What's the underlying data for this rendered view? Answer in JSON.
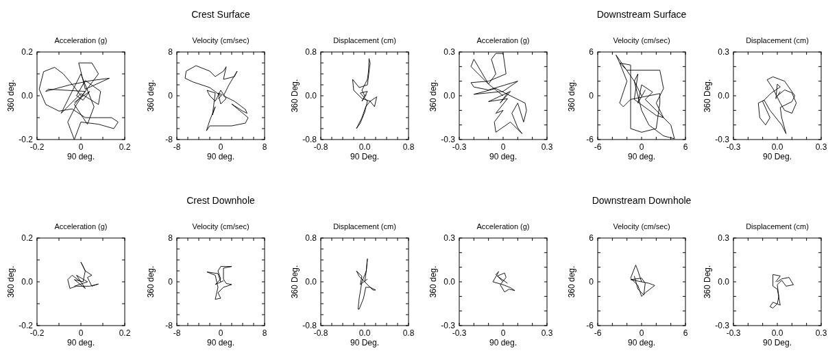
{
  "chart_data": [
    {
      "type": "line",
      "subtitle": "Acceleration (g)",
      "xlabel": "90 deg.",
      "ylabel": "360 deg.",
      "xlim": [
        -0.2,
        0.2
      ],
      "ylim": [
        -0.2,
        0.2
      ],
      "xticks": [
        -0.2,
        {
          "value": -0.1,
          "label": null
        },
        0,
        {
          "value": 0.1,
          "label": null
        },
        0.2
      ],
      "yticks": [
        -0.2,
        {
          "value": -0.1,
          "label": null
        },
        {
          "value": 0,
          "label": "0.0"
        },
        {
          "value": 0.1,
          "label": null
        },
        0.2
      ],
      "series": [
        {
          "color": "#000000",
          "x": [
            0,
            -0.03,
            -0.08,
            -0.12,
            -0.17,
            -0.19,
            -0.16,
            -0.1,
            -0.04,
            0.02,
            0.08,
            0.14,
            0.17,
            0.15,
            0.08,
            0,
            -0.03,
            -0.06,
            -0.02,
            0.02,
            -0.15,
            -0.16,
            -0.05,
            0.05,
            0.13,
            0.02,
            -0.01,
            0.05,
            0.08,
            0.02,
            -0.03,
            0.03,
            0.06,
            0,
            -0.09,
            0,
            0.08,
            0.09,
            0.02,
            -0.02,
            0.01,
            0.04,
            -0.03
          ],
          "values": [
            0,
            0.04,
            0.1,
            0.13,
            0.11,
            0.03,
            -0.04,
            -0.07,
            -0.06,
            -0.1,
            -0.1,
            -0.1,
            -0.12,
            -0.15,
            -0.13,
            -0.12,
            -0.2,
            -0.12,
            -0.04,
            0.02,
            0.03,
            0.02,
            0.05,
            0.07,
            0.08,
            0.03,
            0.15,
            0.15,
            0.1,
            0.02,
            -0.04,
            -0.13,
            -0.05,
            0.1,
            -0.08,
            0.01,
            -0.04,
            0.02,
            0.07,
            0,
            -0.02,
            0.02,
            -0.03
          ]
        }
      ]
    },
    {
      "type": "line",
      "title": "Crest Surface",
      "subtitle": "Velocity (cm/sec)",
      "xlabel": "90 deg.",
      "ylabel": "360 deg.",
      "xlim": [
        -8,
        8
      ],
      "ylim": [
        -8,
        8
      ],
      "xticks": [
        -8,
        {
          "value": -6,
          "label": null
        },
        {
          "value": -4,
          "label": null
        },
        {
          "value": -2,
          "label": null
        },
        0,
        {
          "value": 2,
          "label": null
        },
        {
          "value": 4,
          "label": null
        },
        {
          "value": 6,
          "label": null
        },
        8
      ],
      "yticks": [
        -8,
        {
          "value": -6,
          "label": null
        },
        {
          "value": -4,
          "label": null
        },
        {
          "value": -2,
          "label": null
        },
        0,
        {
          "value": 2,
          "label": null
        },
        {
          "value": 4,
          "label": null
        },
        {
          "value": 6,
          "label": null
        },
        8
      ],
      "series": [
        {
          "color": "#000000",
          "x": [
            0,
            -2,
            -5,
            -6.5,
            -6.3,
            -4.5,
            -2,
            -1,
            0.5,
            1,
            0.5,
            2.5,
            3,
            1.5,
            0.5,
            2.5,
            4.5,
            4.8,
            4,
            2,
            5,
            4.5,
            2,
            -2,
            -2.6,
            -2,
            -1,
            -1.5,
            -1,
            -2.5,
            -2,
            -1,
            0,
            1,
            0,
            -0.5,
            0.3,
            -0.5
          ],
          "values": [
            0,
            1.5,
            2.5,
            3.2,
            4.5,
            5.5,
            4.5,
            3.5,
            4.5,
            5.3,
            3,
            3.5,
            4.5,
            2,
            0,
            -1,
            -2.5,
            -3.2,
            -2.8,
            -1.5,
            -4,
            -5,
            -5.5,
            -5.5,
            -6.4,
            -4.5,
            -2,
            -3.5,
            0.5,
            1,
            0,
            -1,
            1,
            -0.5,
            -1.5,
            0.5,
            0.2,
            -0.6
          ]
        }
      ]
    },
    {
      "type": "line",
      "subtitle": "Displacement (cm)",
      "xlabel": "90 Deg.",
      "ylabel": "360 Deg.",
      "xlim": [
        -0.8,
        0.8
      ],
      "ylim": [
        -0.8,
        0.8
      ],
      "xticks": [
        -0.8,
        {
          "value": -0.6,
          "label": null
        },
        {
          "value": -0.4,
          "label": null
        },
        {
          "value": -0.2,
          "label": null
        },
        {
          "value": 0,
          "label": "0.0"
        },
        {
          "value": 0.2,
          "label": null
        },
        {
          "value": 0.4,
          "label": null
        },
        {
          "value": 0.6,
          "label": null
        },
        0.8
      ],
      "yticks": [
        -0.8,
        {
          "value": -0.6,
          "label": null
        },
        {
          "value": -0.4,
          "label": null
        },
        {
          "value": -0.2,
          "label": null
        },
        {
          "value": 0,
          "label": "0.0"
        },
        {
          "value": 0.2,
          "label": null
        },
        {
          "value": 0.4,
          "label": null
        },
        {
          "value": 0.6,
          "label": null
        },
        0.8
      ],
      "series": [
        {
          "color": "#000000",
          "x": [
            0,
            -0.05,
            0.05,
            0.07,
            0.08,
            0.1,
            0.05,
            -0.1,
            -0.22,
            -0.2,
            -0.05,
            0.1,
            0.22,
            0.18,
            0.1,
            0.02,
            -0.05,
            -0.15,
            -0.08,
            0,
            0.05,
            -0.08,
            0.05,
            -0.05,
            0.03
          ],
          "values": [
            0,
            0.1,
            0.3,
            0.45,
            0.68,
            0.6,
            0.2,
            0.15,
            0.3,
            0.1,
            -0.05,
            -0.1,
            -0.02,
            -0.2,
            -0.1,
            -0.2,
            -0.4,
            -0.6,
            -0.5,
            -0.3,
            -0.1,
            0.05,
            0.08,
            -0.1,
            0.02
          ]
        }
      ]
    },
    {
      "type": "line",
      "subtitle": "Acceleration (g)",
      "xlabel": "90 deg.",
      "ylabel": "360 deg.",
      "xlim": [
        -0.3,
        0.3
      ],
      "ylim": [
        -0.3,
        0.3
      ],
      "xticks": [
        -0.3,
        {
          "value": -0.2,
          "label": null
        },
        {
          "value": -0.1,
          "label": null
        },
        0,
        {
          "value": 0.1,
          "label": null
        },
        {
          "value": 0.2,
          "label": null
        },
        0.3
      ],
      "yticks": [
        -0.3,
        {
          "value": -0.2,
          "label": null
        },
        {
          "value": -0.1,
          "label": null
        },
        {
          "value": 0,
          "label": "0.0"
        },
        {
          "value": 0.1,
          "label": null
        },
        {
          "value": 0.2,
          "label": null
        },
        0.3
      ],
      "series": [
        {
          "color": "#000000",
          "x": [
            0,
            -0.1,
            -0.2,
            -0.22,
            -0.1,
            -0.05,
            -0.08,
            -0.05,
            0,
            0.02,
            -0.1,
            -0.22,
            -0.2,
            -0.1,
            0.1,
            0,
            -0.2,
            -0.05,
            0.09,
            0.15,
            0.16,
            0.14,
            0.1,
            0.06,
            0.1,
            0.13,
            0.05,
            -0.05,
            -0.06,
            0,
            -0.05,
            0.03,
            -0.1,
            0.05,
            -0.02,
            0.03
          ],
          "values": [
            0,
            0.08,
            0.25,
            0.2,
            0.08,
            0.15,
            0.25,
            0.29,
            0.29,
            0.15,
            0.1,
            0.09,
            0.06,
            0.04,
            0.1,
            0.03,
            0.01,
            0.05,
            -0.02,
            -0.05,
            -0.1,
            -0.18,
            -0.05,
            -0.12,
            -0.22,
            -0.26,
            -0.18,
            -0.25,
            -0.18,
            -0.1,
            -0.12,
            -0.02,
            -0.04,
            0.03,
            -0.05,
            0.02
          ]
        }
      ]
    },
    {
      "type": "line",
      "title": "Downstream Surface",
      "subtitle": "Velocity (cm/sec)",
      "xlabel": "90 deg.",
      "ylabel": "360 deg.",
      "xlim": [
        -6,
        6
      ],
      "ylim": [
        -6,
        6
      ],
      "xticks": [
        -6,
        {
          "value": -4,
          "label": null
        },
        {
          "value": -2,
          "label": null
        },
        0,
        {
          "value": 2,
          "label": null
        },
        {
          "value": 4,
          "label": null
        },
        6
      ],
      "yticks": [
        -6,
        {
          "value": -4,
          "label": null
        },
        {
          "value": -2,
          "label": null
        },
        0,
        {
          "value": 2,
          "label": null
        },
        {
          "value": 4,
          "label": null
        },
        6
      ],
      "series": [
        {
          "color": "#000000",
          "x": [
            0,
            -1,
            -3.5,
            -3,
            -2,
            -3,
            -2.5,
            -1.5,
            2.5,
            2.5,
            2,
            0,
            -1.5,
            -1.5,
            -3,
            -2,
            2.5,
            3,
            2,
            3,
            2,
            -1,
            -0.5,
            -1,
            0,
            1,
            3,
            4.5,
            4,
            2,
            0.5,
            1.5,
            0,
            -0.5,
            0.5
          ],
          "values": [
            0,
            2,
            5.6,
            4.5,
            2,
            -1,
            -1.5,
            -0.5,
            0.3,
            -1,
            -4.5,
            -5,
            -4.5,
            4.2,
            4.5,
            3.5,
            3.5,
            1,
            -1,
            -3,
            -2.7,
            -0.5,
            3,
            2,
            -2,
            -4,
            -5.5,
            -5.9,
            -4,
            -2,
            -0.5,
            0.5,
            1.5,
            -1,
            0.8
          ]
        }
      ]
    },
    {
      "type": "line",
      "subtitle": "Displacement (cm)",
      "xlabel": "90 Deg.",
      "ylabel": "360 Deg.",
      "xlim": [
        -0.3,
        0.3
      ],
      "ylim": [
        -0.3,
        0.3
      ],
      "xticks": [
        -0.3,
        {
          "value": -0.2,
          "label": null
        },
        {
          "value": -0.1,
          "label": null
        },
        {
          "value": 0,
          "label": "0.0"
        },
        {
          "value": 0.1,
          "label": null
        },
        {
          "value": 0.2,
          "label": null
        },
        0.3
      ],
      "yticks": [
        -0.3,
        {
          "value": -0.2,
          "label": null
        },
        {
          "value": -0.1,
          "label": null
        },
        {
          "value": 0,
          "label": "0.0"
        },
        {
          "value": 0.1,
          "label": null
        },
        {
          "value": 0.2,
          "label": null
        },
        0.3
      ],
      "series": [
        {
          "color": "#000000",
          "x": [
            0,
            0.05,
            0.1,
            0.13,
            0.1,
            0.05,
            0.02,
            -0.03,
            -0.07,
            -0.03,
            0.05,
            0.12,
            0.1,
            0.02,
            0.03,
            0.06,
            0.03,
            -0.05,
            -0.09,
            -0.13,
            -0.12,
            -0.08,
            -0.05,
            -0.1,
            -0.04,
            0.02,
            0,
            -0.01,
            0.02
          ],
          "values": [
            0,
            0.04,
            0.02,
            -0.05,
            -0.12,
            -0.1,
            -0.05,
            0.05,
            0.11,
            0.13,
            0.1,
            0,
            -0.04,
            -0.08,
            -0.15,
            -0.26,
            -0.2,
            -0.1,
            -0.03,
            -0.05,
            -0.15,
            -0.2,
            -0.15,
            -0.04,
            0.02,
            0.06,
            0.08,
            -0.02,
            0.03
          ]
        }
      ]
    },
    {
      "type": "line",
      "subtitle": "Acceleration (g)",
      "xlabel": "90 deg.",
      "ylabel": "360 deg.",
      "xlim": [
        -0.2,
        0.2
      ],
      "ylim": [
        -0.2,
        0.2
      ],
      "xticks": [
        -0.2,
        {
          "value": -0.1,
          "label": null
        },
        0,
        {
          "value": 0.1,
          "label": null
        },
        0.2
      ],
      "yticks": [
        -0.2,
        {
          "value": -0.1,
          "label": null
        },
        {
          "value": 0,
          "label": "0.0"
        },
        {
          "value": 0.1,
          "label": null
        },
        0.2
      ],
      "series": [
        {
          "color": "#000000",
          "x": [
            0,
            -0.04,
            -0.06,
            -0.05,
            -0.02,
            0.04,
            0.08,
            0.05,
            0.03,
            0.05,
            0.02,
            0,
            0.02,
            0.01,
            -0.03,
            0.02,
            -0.02,
            0.03,
            -0.03
          ],
          "values": [
            0,
            0.03,
            0.01,
            -0.03,
            -0.02,
            -0.02,
            -0.01,
            -0.02,
            0.02,
            0.03,
            0.05,
            0.09,
            0.05,
            0,
            0.01,
            -0.03,
            0.03,
            0,
            -0.02
          ]
        }
      ]
    },
    {
      "type": "line",
      "title": "Crest Downhole",
      "subtitle": "Velocity (cm/sec)",
      "xlabel": "90 deg.",
      "ylabel": "360 deg.",
      "xlim": [
        -8,
        8
      ],
      "ylim": [
        -8,
        8
      ],
      "xticks": [
        -8,
        {
          "value": -6,
          "label": null
        },
        {
          "value": -4,
          "label": null
        },
        {
          "value": -2,
          "label": null
        },
        0,
        {
          "value": 2,
          "label": null
        },
        {
          "value": 4,
          "label": null
        },
        {
          "value": 6,
          "label": null
        },
        8
      ],
      "yticks": [
        -8,
        {
          "value": -6,
          "label": null
        },
        {
          "value": -4,
          "label": null
        },
        {
          "value": -2,
          "label": null
        },
        0,
        {
          "value": 2,
          "label": null
        },
        {
          "value": 4,
          "label": null
        },
        {
          "value": 6,
          "label": null
        },
        8
      ],
      "series": [
        {
          "color": "#000000",
          "x": [
            0,
            -0.5,
            -2.5,
            -1,
            -0.5,
            -1,
            0,
            -0.5,
            0.5,
            2,
            1,
            0.5,
            0.5,
            2,
            0,
            -0.5,
            0,
            -1,
            0.5
          ],
          "values": [
            0,
            1.5,
            1.8,
            1.2,
            -1,
            -3.2,
            -3,
            -2,
            -1,
            -0.5,
            -0.3,
            0.5,
            2.5,
            2.8,
            2.8,
            2,
            0.5,
            -0.5,
            0.2
          ]
        }
      ]
    },
    {
      "type": "line",
      "subtitle": "Displacement (cm)",
      "xlabel": "90 Deg.",
      "ylabel": "360 Deg.",
      "xlim": [
        -0.8,
        0.8
      ],
      "ylim": [
        -0.8,
        0.8
      ],
      "xticks": [
        -0.8,
        {
          "value": -0.6,
          "label": null
        },
        {
          "value": -0.4,
          "label": null
        },
        {
          "value": -0.2,
          "label": null
        },
        {
          "value": 0,
          "label": "0.0"
        },
        {
          "value": 0.2,
          "label": null
        },
        {
          "value": 0.4,
          "label": null
        },
        {
          "value": 0.6,
          "label": null
        },
        0.8
      ],
      "yticks": [
        -0.8,
        {
          "value": -0.6,
          "label": null
        },
        {
          "value": -0.4,
          "label": null
        },
        {
          "value": -0.2,
          "label": null
        },
        {
          "value": 0,
          "label": "0.0"
        },
        {
          "value": 0.2,
          "label": null
        },
        {
          "value": 0.4,
          "label": null
        },
        {
          "value": 0.6,
          "label": null
        },
        0.8
      ],
      "series": [
        {
          "color": "#000000",
          "x": [
            0,
            0.03,
            0.05,
            0.03,
            -0.05,
            -0.1,
            -0.12,
            -0.1,
            -0.02,
            0.02,
            0.1,
            0.2,
            0.15,
            0.05,
            -0.1,
            -0.15,
            -0.05,
            -0.08,
            0.05
          ],
          "values": [
            0,
            0.2,
            0.42,
            0.2,
            0,
            -0.3,
            -0.5,
            -0.5,
            -0.3,
            -0.1,
            -0.1,
            -0.15,
            -0.15,
            -0.05,
            0.1,
            0.2,
            0.1,
            -0.05,
            0.05
          ]
        }
      ]
    },
    {
      "type": "line",
      "subtitle": "Acceleration (g)",
      "xlabel": "90 deg.",
      "ylabel": "360 deg.",
      "xlim": [
        -0.3,
        0.3
      ],
      "ylim": [
        -0.3,
        0.3
      ],
      "xticks": [
        -0.3,
        {
          "value": -0.2,
          "label": null
        },
        {
          "value": -0.1,
          "label": null
        },
        0,
        {
          "value": 0.1,
          "label": null
        },
        {
          "value": 0.2,
          "label": null
        },
        0.3
      ],
      "yticks": [
        -0.3,
        {
          "value": -0.2,
          "label": null
        },
        {
          "value": -0.1,
          "label": null
        },
        {
          "value": 0,
          "label": "0.0"
        },
        {
          "value": 0.1,
          "label": null
        },
        {
          "value": 0.2,
          "label": null
        },
        0.3
      ],
      "series": [
        {
          "color": "#000000",
          "x": [
            0,
            -0.05,
            -0.03,
            -0.07,
            0,
            0.05,
            0.08,
            0.04,
            0.01,
            -0.02,
            0.02,
            0.01,
            -0.04,
            0.03
          ],
          "values": [
            0,
            0.05,
            0.07,
            0,
            -0.02,
            -0.04,
            -0.06,
            -0.05,
            -0.07,
            -0.02,
            0.03,
            0.06,
            0.04,
            -0.01
          ]
        }
      ]
    },
    {
      "type": "line",
      "title": "Downstream Downhole",
      "subtitle": "Velocity (cm/sec)",
      "xlabel": "90 deg.",
      "ylabel": "360 deg.",
      "xlim": [
        -6,
        6
      ],
      "ylim": [
        -6,
        6
      ],
      "xticks": [
        -6,
        {
          "value": -4,
          "label": null
        },
        {
          "value": -2,
          "label": null
        },
        0,
        {
          "value": 2,
          "label": null
        },
        {
          "value": 4,
          "label": null
        },
        6
      ],
      "yticks": [
        -6,
        {
          "value": -4,
          "label": null
        },
        {
          "value": -2,
          "label": null
        },
        0,
        {
          "value": 2,
          "label": null
        },
        {
          "value": 4,
          "label": null
        },
        6
      ],
      "series": [
        {
          "color": "#000000",
          "x": [
            0,
            -0.5,
            -0.8,
            -1.5,
            -0.5,
            0,
            0.5,
            1.8,
            1,
            -1.5,
            0,
            0.5,
            0.3,
            -0.5,
            -1
          ],
          "values": [
            0,
            1.5,
            2.3,
            0.5,
            -0.5,
            -2,
            -1.5,
            -0.5,
            -0.2,
            0.3,
            0.5,
            -0.2,
            -1.8,
            -1,
            0.8
          ]
        }
      ]
    },
    {
      "type": "line",
      "subtitle": "Displacement (cm)",
      "xlabel": "90 Deg.",
      "ylabel": "360 Deg.",
      "xlim": [
        -0.3,
        0.3
      ],
      "ylim": [
        -0.3,
        0.3
      ],
      "xticks": [
        -0.3,
        {
          "value": -0.2,
          "label": null
        },
        {
          "value": -0.1,
          "label": null
        },
        {
          "value": 0,
          "label": "0.0"
        },
        {
          "value": 0.1,
          "label": null
        },
        {
          "value": 0.2,
          "label": null
        },
        0.3
      ],
      "yticks": [
        -0.3,
        {
          "value": -0.2,
          "label": null
        },
        {
          "value": -0.1,
          "label": null
        },
        {
          "value": 0,
          "label": "0.0"
        },
        {
          "value": 0.1,
          "label": null
        },
        {
          "value": 0.2,
          "label": null
        },
        0.3
      ],
      "series": [
        {
          "color": "#000000",
          "x": [
            0,
            0.03,
            0.08,
            0.11,
            0.06,
            0.03,
            0,
            0.01,
            0,
            -0.03,
            -0.05,
            -0.03,
            0.02,
            0,
            -0.03,
            -0.03,
            0.02,
            -0.01
          ],
          "values": [
            0,
            0.02,
            0.03,
            -0.02,
            -0.03,
            0.01,
            -0.02,
            -0.1,
            -0.15,
            -0.18,
            -0.17,
            -0.14,
            -0.16,
            -0.05,
            -0.03,
            0.05,
            0.04,
            0
          ]
        }
      ]
    }
  ]
}
